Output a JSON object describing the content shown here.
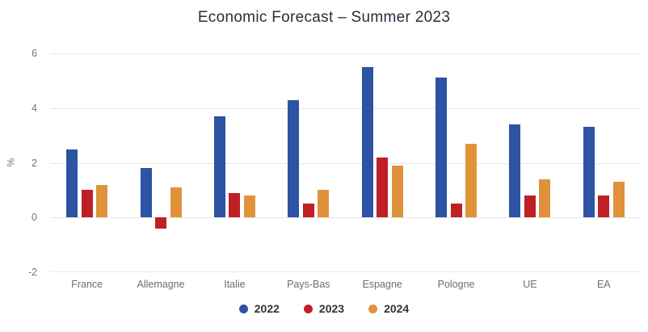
{
  "chart_data": {
    "type": "bar",
    "title": "Economic Forecast – Summer 2023",
    "ylabel": "%",
    "categories": [
      "France",
      "Allemagne",
      "Italie",
      "Pays-Bas",
      "Espagne",
      "Pologne",
      "UE",
      "EA"
    ],
    "series": [
      {
        "name": "2022",
        "color": "#2d53a3",
        "values": [
          2.5,
          1.8,
          3.7,
          4.3,
          5.5,
          5.1,
          3.4,
          3.3
        ]
      },
      {
        "name": "2023",
        "color": "#be2026",
        "values": [
          1.0,
          -0.4,
          0.9,
          0.5,
          2.2,
          0.5,
          0.8,
          0.8
        ]
      },
      {
        "name": "2024",
        "color": "#e0923a",
        "values": [
          1.2,
          1.1,
          0.8,
          1.0,
          1.9,
          2.7,
          1.4,
          1.3
        ]
      }
    ],
    "ylim": [
      -2,
      6
    ],
    "ytick_step": 2,
    "grid": true,
    "legend_position": "bottom",
    "background_color": "#ffffff",
    "title_color": "#22303e",
    "axis_text_color": "#757575"
  }
}
